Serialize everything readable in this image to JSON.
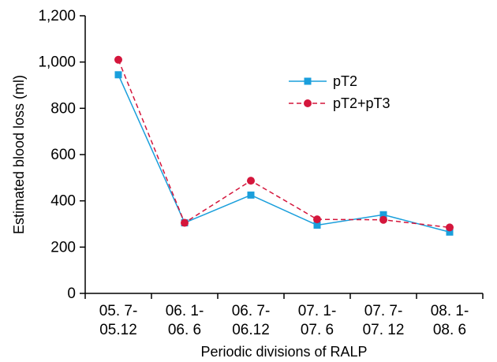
{
  "chart_data": {
    "type": "line",
    "title": "",
    "xlabel": "Periodic divisions of RALP",
    "ylabel": "Estimated blood loss (ml)",
    "ylim": [
      0,
      1200
    ],
    "yticks": [
      0,
      200,
      400,
      600,
      800,
      1000,
      1200
    ],
    "ytick_labels": [
      "0",
      "200",
      "400",
      "600",
      "800",
      "1,000",
      "1,200"
    ],
    "categories": [
      [
        "05. 7-",
        "05.12"
      ],
      [
        "06. 1-",
        "06. 6"
      ],
      [
        "06. 7-",
        "06.12"
      ],
      [
        "07. 1-",
        "07. 6"
      ],
      [
        "07. 7-",
        "07. 12"
      ],
      [
        "08. 1-",
        "08. 6"
      ]
    ],
    "grid": false,
    "legend_position": "top-right",
    "series": [
      {
        "name": "pT2",
        "values": [
          945,
          305,
          425,
          295,
          340,
          265
        ],
        "color": "#1a9fdc",
        "line": "solid",
        "marker": "square"
      },
      {
        "name": "pT2+pT3",
        "values": [
          1010,
          305,
          487,
          320,
          318,
          285
        ],
        "color": "#d4163c",
        "line": "dashed",
        "marker": "circle"
      }
    ]
  }
}
